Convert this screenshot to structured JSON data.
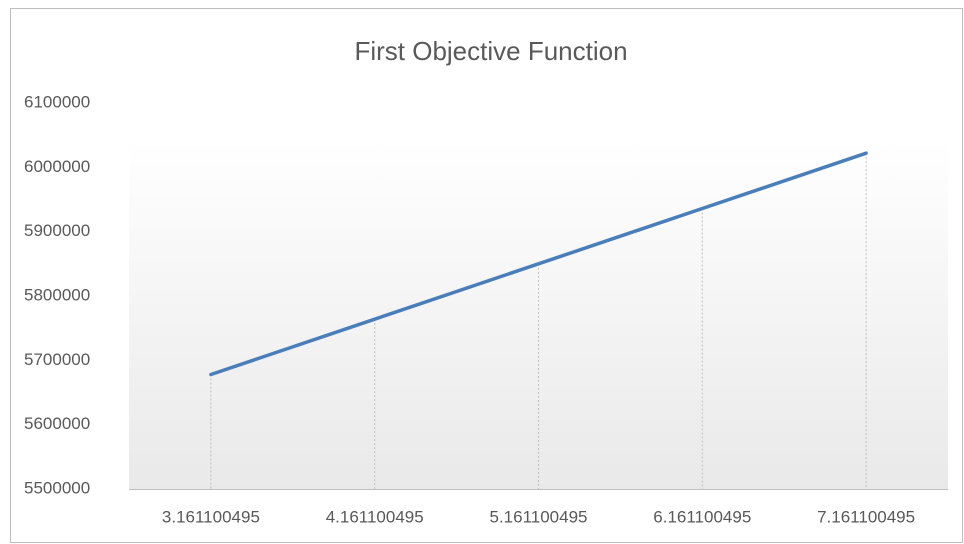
{
  "chart_data": {
    "type": "line",
    "title": "First Objective Function",
    "categories": [
      "3.161100495",
      "4.161100495",
      "5.161100495",
      "6.161100495",
      "7.161100495"
    ],
    "values": [
      5678000,
      5764000,
      5850000,
      5936000,
      6022000
    ],
    "color": "#4a7ebb",
    "ylim": [
      5500000,
      6100000
    ],
    "yticks": [
      5500000,
      5600000,
      5700000,
      5800000,
      5900000,
      6000000,
      6100000
    ]
  }
}
